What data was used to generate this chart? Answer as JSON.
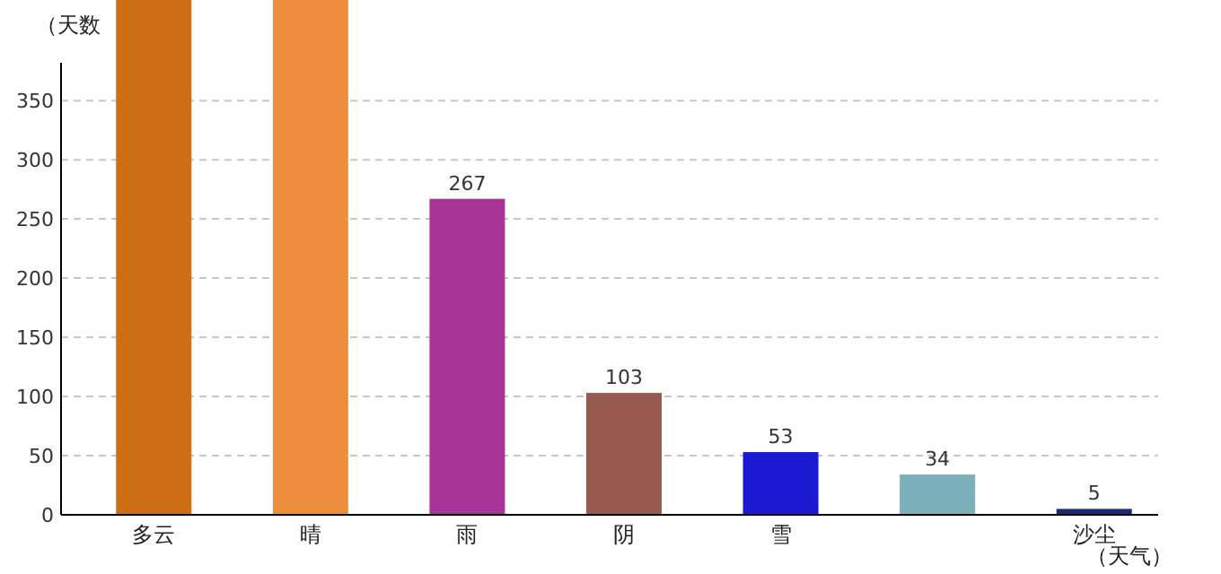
{
  "chart_data": {
    "type": "bar",
    "ylabel": "（天数",
    "xlabel": "（天气）",
    "categories": [
      "多云",
      "晴",
      "雨",
      "阴",
      "雪",
      null,
      "沙尘"
    ],
    "values": [
      435,
      435,
      267,
      103,
      53,
      34,
      5
    ],
    "value_labels": [
      null,
      null,
      "267",
      "103",
      "53",
      "34",
      "5"
    ],
    "colors": [
      "#cd6d14",
      "#ee8d3c",
      "#a73597",
      "#985a4e",
      "#1b19d2",
      "#7bb0bb",
      "#1b2a78"
    ],
    "ylim": [
      0,
      435
    ],
    "yticks": [
      0,
      50,
      100,
      150,
      200,
      250,
      300,
      350
    ],
    "grid": "y"
  }
}
